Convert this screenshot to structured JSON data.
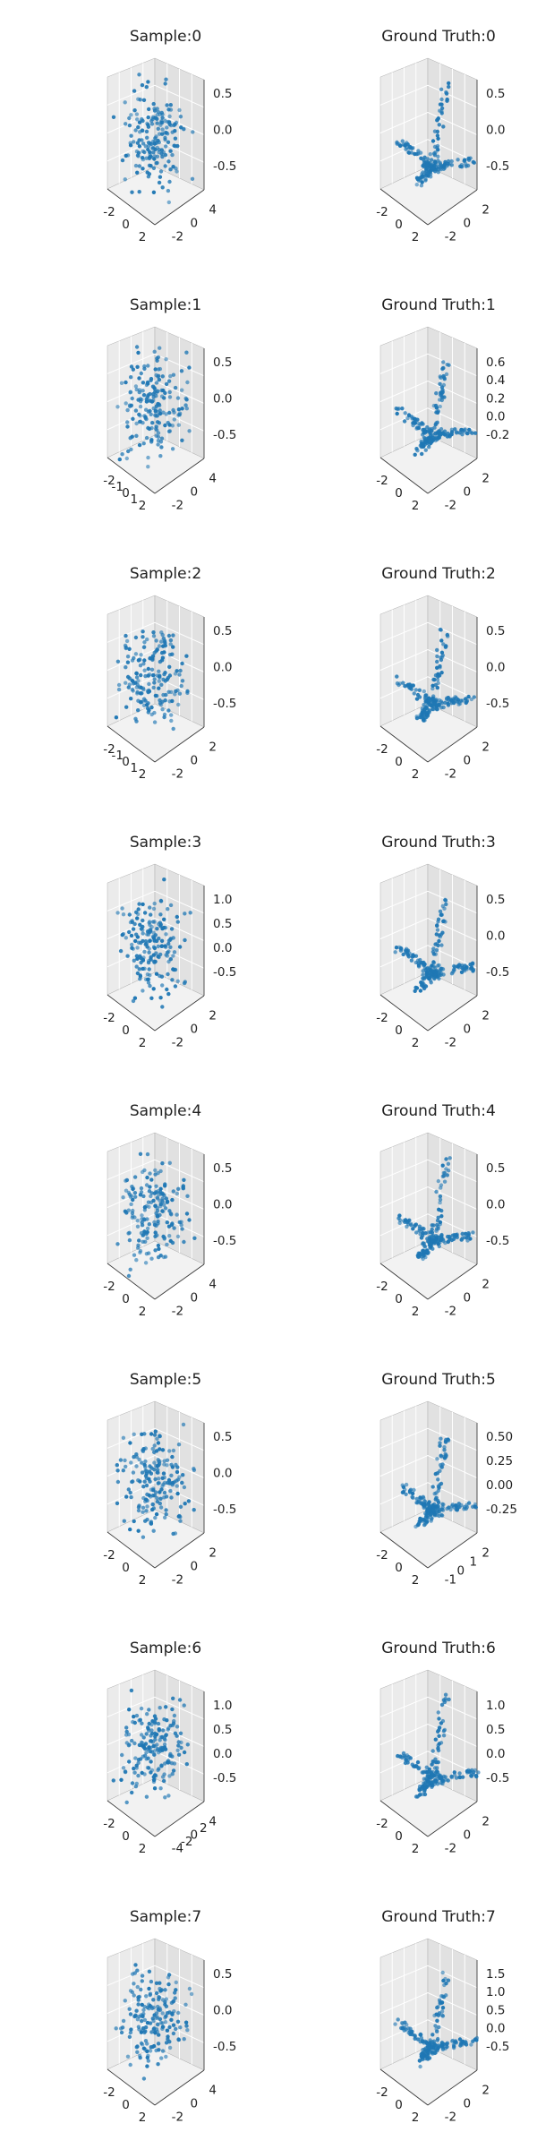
{
  "chart_data": [
    {
      "type": "scatter",
      "title": "Sample:0",
      "x_ticks": [
        "-2",
        "0",
        "2"
      ],
      "y_ticks": [
        "-2",
        "0",
        "4"
      ],
      "z_ticks": [
        "0.5",
        "0.0",
        "-0.5"
      ],
      "points": "cloud"
    },
    {
      "type": "scatter",
      "title": "Ground Truth:0",
      "x_ticks": [
        "-2",
        "0",
        "2"
      ],
      "y_ticks": [
        "-2",
        "0",
        "2"
      ],
      "z_ticks": [
        "0.5",
        "0.0",
        "-0.5"
      ],
      "points": "skeleton"
    },
    {
      "type": "scatter",
      "title": "Sample:1",
      "x_ticks": [
        "-2",
        "-1",
        "0",
        "1",
        "2"
      ],
      "y_ticks": [
        "-2",
        "0",
        "4"
      ],
      "z_ticks": [
        "0.5",
        "0.0",
        "-0.5"
      ],
      "points": "cloud"
    },
    {
      "type": "scatter",
      "title": "Ground Truth:1",
      "x_ticks": [
        "-2",
        "0",
        "2"
      ],
      "y_ticks": [
        "-2",
        "0",
        "2"
      ],
      "z_ticks": [
        "0.6",
        "0.4",
        "0.2",
        "0.0",
        "-0.2"
      ],
      "points": "skeleton"
    },
    {
      "type": "scatter",
      "title": "Sample:2",
      "x_ticks": [
        "-2",
        "-1",
        "0",
        "1",
        "2"
      ],
      "y_ticks": [
        "-2",
        "0",
        "2"
      ],
      "z_ticks": [
        "0.5",
        "0.0",
        "-0.5"
      ],
      "points": "cloud"
    },
    {
      "type": "scatter",
      "title": "Ground Truth:2",
      "x_ticks": [
        "-2",
        "0",
        "2"
      ],
      "y_ticks": [
        "-2",
        "0",
        "2"
      ],
      "z_ticks": [
        "0.5",
        "0.0",
        "-0.5"
      ],
      "points": "skeleton"
    },
    {
      "type": "scatter",
      "title": "Sample:3",
      "x_ticks": [
        "-2",
        "0",
        "2"
      ],
      "y_ticks": [
        "-2",
        "0",
        "2"
      ],
      "z_ticks": [
        "1.0",
        "0.5",
        "0.0",
        "-0.5"
      ],
      "points": "cloud"
    },
    {
      "type": "scatter",
      "title": "Ground Truth:3",
      "x_ticks": [
        "-2",
        "0",
        "2"
      ],
      "y_ticks": [
        "-2",
        "0",
        "2"
      ],
      "z_ticks": [
        "0.5",
        "0.0",
        "-0.5"
      ],
      "points": "skeleton"
    },
    {
      "type": "scatter",
      "title": "Sample:4",
      "x_ticks": [
        "-2",
        "0",
        "2"
      ],
      "y_ticks": [
        "-2",
        "0",
        "4"
      ],
      "z_ticks": [
        "0.5",
        "0.0",
        "-0.5"
      ],
      "points": "cloud"
    },
    {
      "type": "scatter",
      "title": "Ground Truth:4",
      "x_ticks": [
        "-2",
        "0",
        "2"
      ],
      "y_ticks": [
        "-2",
        "0",
        "2"
      ],
      "z_ticks": [
        "0.5",
        "0.0",
        "-0.5"
      ],
      "points": "skeleton"
    },
    {
      "type": "scatter",
      "title": "Sample:5",
      "x_ticks": [
        "-2",
        "0",
        "2"
      ],
      "y_ticks": [
        "-2",
        "0",
        "2"
      ],
      "z_ticks": [
        "0.5",
        "0.0",
        "-0.5"
      ],
      "points": "cloud"
    },
    {
      "type": "scatter",
      "title": "Ground Truth:5",
      "x_ticks": [
        "-2",
        "0",
        "2"
      ],
      "y_ticks": [
        "-1",
        "0",
        "1",
        "2"
      ],
      "z_ticks": [
        "0.50",
        "0.25",
        "0.00",
        "-0.25"
      ],
      "points": "skeleton"
    },
    {
      "type": "scatter",
      "title": "Sample:6",
      "x_ticks": [
        "-2",
        "0",
        "2"
      ],
      "y_ticks": [
        "-4",
        "-2",
        "0",
        "2",
        "4"
      ],
      "z_ticks": [
        "1.0",
        "0.5",
        "0.0",
        "-0.5"
      ],
      "points": "cloud"
    },
    {
      "type": "scatter",
      "title": "Ground Truth:6",
      "x_ticks": [
        "-2",
        "0",
        "2"
      ],
      "y_ticks": [
        "-2",
        "0",
        "2"
      ],
      "z_ticks": [
        "1.0",
        "0.5",
        "0.0",
        "-0.5"
      ],
      "points": "skeleton"
    },
    {
      "type": "scatter",
      "title": "Sample:7",
      "x_ticks": [
        "-2",
        "0",
        "2"
      ],
      "y_ticks": [
        "-2",
        "0",
        "4"
      ],
      "z_ticks": [
        "0.5",
        "0.0",
        "-0.5"
      ],
      "points": "cloud"
    },
    {
      "type": "scatter",
      "title": "Ground Truth:7",
      "x_ticks": [
        "-2",
        "0",
        "2"
      ],
      "y_ticks": [
        "-2",
        "0",
        "2"
      ],
      "z_ticks": [
        "1.5",
        "1.0",
        "0.5",
        "0.0",
        "-0.5"
      ],
      "points": "skeleton"
    }
  ],
  "colors": {
    "marker": "#1f77b4",
    "pane_left": "#ebebeb",
    "pane_right": "#e1e1e1",
    "pane_floor": "#f2f2f2",
    "grid": "#ffffff",
    "edge": "#b0b0b0"
  }
}
